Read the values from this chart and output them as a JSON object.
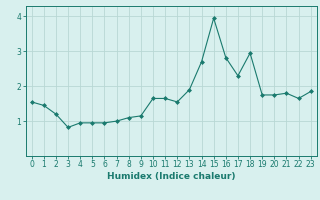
{
  "x": [
    0,
    1,
    2,
    3,
    4,
    5,
    6,
    7,
    8,
    9,
    10,
    11,
    12,
    13,
    14,
    15,
    16,
    17,
    18,
    19,
    20,
    21,
    22,
    23
  ],
  "y": [
    1.55,
    1.45,
    1.2,
    0.82,
    0.95,
    0.95,
    0.95,
    1.0,
    1.1,
    1.15,
    1.65,
    1.65,
    1.55,
    1.9,
    2.7,
    3.95,
    2.82,
    2.3,
    2.95,
    1.75,
    1.75,
    1.8,
    1.65,
    1.85
  ],
  "line_color": "#1a7a6e",
  "marker": "D",
  "marker_size": 2.0,
  "background_color": "#d8f0ee",
  "grid_color": "#b8d8d4",
  "xlabel": "Humidex (Indice chaleur)",
  "ylim": [
    0,
    4.3
  ],
  "xlim": [
    -0.5,
    23.5
  ],
  "yticks": [
    1,
    2,
    3,
    4
  ],
  "xticks": [
    0,
    1,
    2,
    3,
    4,
    5,
    6,
    7,
    8,
    9,
    10,
    11,
    12,
    13,
    14,
    15,
    16,
    17,
    18,
    19,
    20,
    21,
    22,
    23
  ],
  "tick_color": "#1a7a6e",
  "label_fontsize": 6.5,
  "tick_fontsize": 5.5,
  "spine_color": "#1a7a6e",
  "linewidth": 0.8
}
